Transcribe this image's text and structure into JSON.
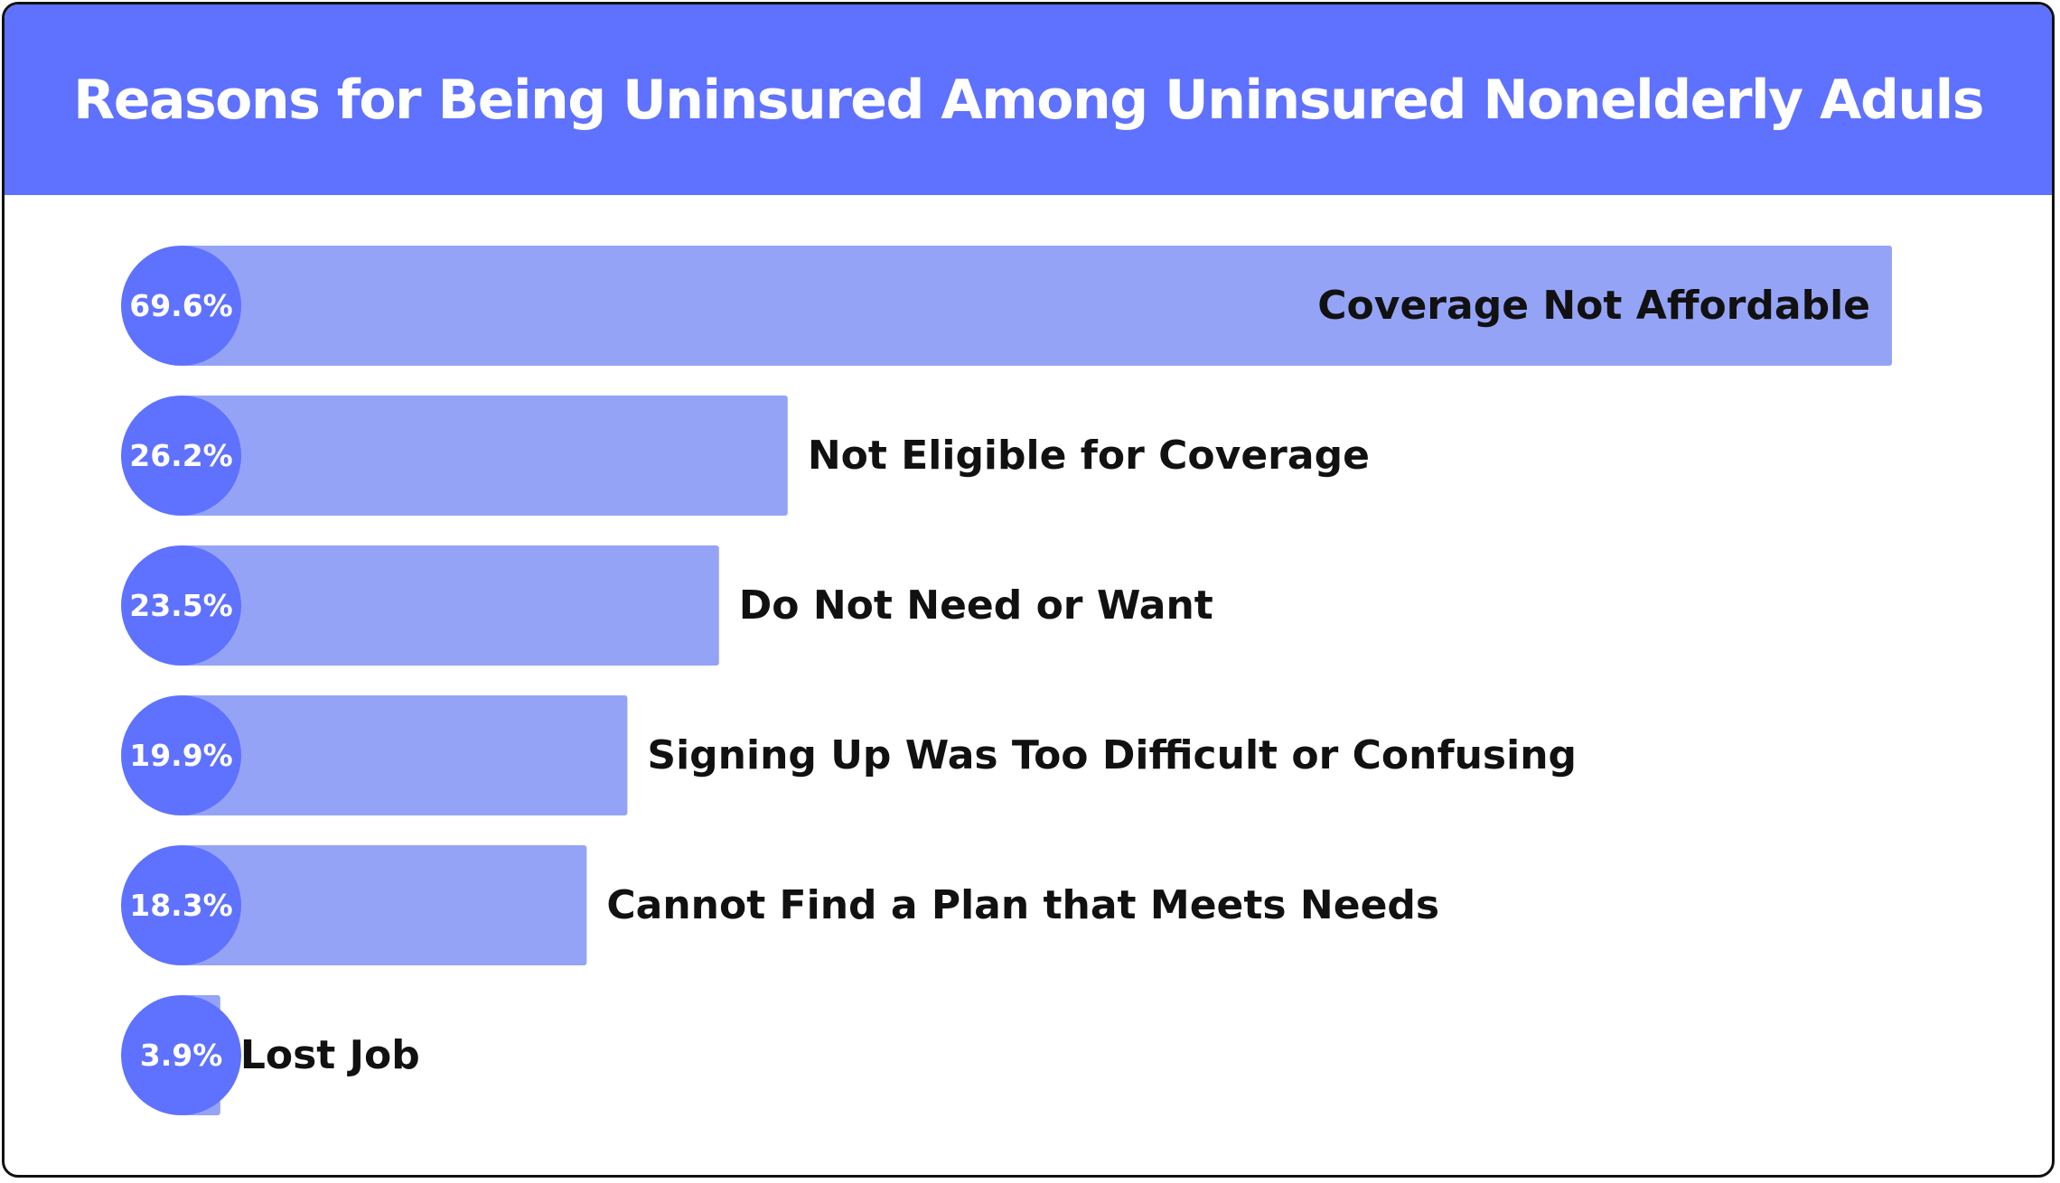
{
  "chart_data": {
    "type": "bar",
    "orientation": "horizontal",
    "title": "Reasons for Being Uninsured Among Uninsured Nonelderly Aduls",
    "categories": [
      "Coverage Not Affordable",
      "Not Eligible for Coverage",
      "Do Not Need or Want",
      "Signing Up Was Too Difficult or Confusing",
      "Cannot Find a Plan that Meets Needs",
      "Lost Job"
    ],
    "values": [
      69.6,
      26.2,
      23.5,
      19.9,
      18.3,
      3.9
    ],
    "value_labels": [
      "69.6%",
      "26.2%",
      "23.5%",
      "19.9%",
      "18.3%",
      "3.9%"
    ],
    "unit": "%",
    "xlim": [
      0,
      69.6
    ],
    "grid": false,
    "legend": "none",
    "colors": {
      "header": "#5f71ff",
      "bar": "#95a3f7",
      "value_bubble": "#5f71ff",
      "label": "#111111"
    }
  }
}
